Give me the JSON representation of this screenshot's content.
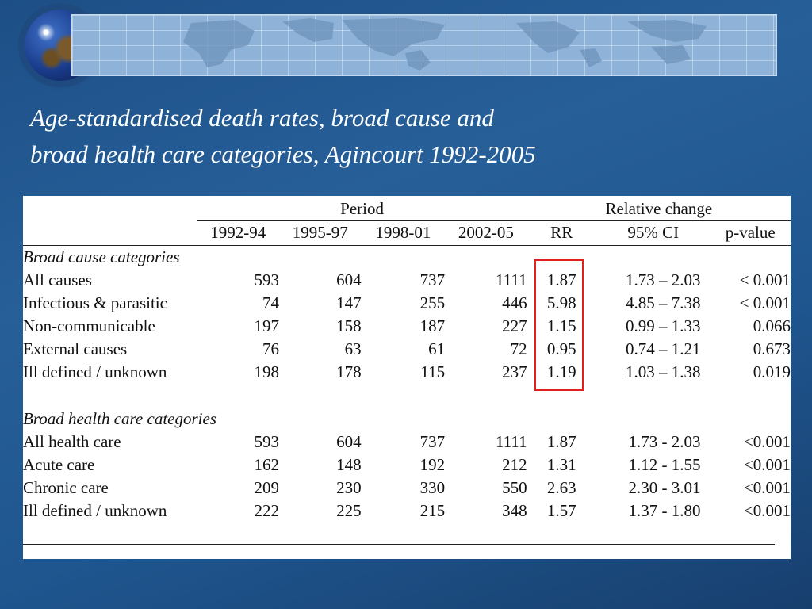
{
  "slide": {
    "title_line1": "Age-standardised death rates, broad cause and",
    "title_line2": "broad health care categories, Agincourt 1992-2005"
  },
  "table": {
    "group_headers": {
      "period": "Period",
      "relative_change": "Relative change"
    },
    "columns": [
      "1992-94",
      "1995-97",
      "1998-01",
      "2002-05",
      "RR",
      "95% CI",
      "p-value"
    ],
    "sections": [
      {
        "title": "Broad cause categories",
        "rows": [
          {
            "label": "All causes",
            "p1": "593",
            "p2": "604",
            "p3": "737",
            "p4": "1111",
            "rr": "1.87",
            "ci": "1.73 – 2.03",
            "p": "< 0.001"
          },
          {
            "label": "Infectious & parasitic",
            "p1": "74",
            "p2": "147",
            "p3": "255",
            "p4": "446",
            "rr": "5.98",
            "ci": "4.85 – 7.38",
            "p": "< 0.001"
          },
          {
            "label": "Non-communicable",
            "p1": "197",
            "p2": "158",
            "p3": "187",
            "p4": "227",
            "rr": "1.15",
            "ci": "0.99 – 1.33",
            "p": "0.066"
          },
          {
            "label": "External causes",
            "p1": "76",
            "p2": "63",
            "p3": "61",
            "p4": "72",
            "rr": "0.95",
            "ci": "0.74 – 1.21",
            "p": "0.673"
          },
          {
            "label": "Ill defined / unknown",
            "p1": "198",
            "p2": "178",
            "p3": "115",
            "p4": "237",
            "rr": "1.19",
            "ci": "1.03 – 1.38",
            "p": "0.019"
          }
        ]
      },
      {
        "title": "Broad health care categories",
        "rows": [
          {
            "label": "All health care",
            "p1": "593",
            "p2": "604",
            "p3": "737",
            "p4": "1111",
            "rr": "1.87",
            "ci": "1.73 - 2.03",
            "p": "<0.001"
          },
          {
            "label": "Acute care",
            "p1": "162",
            "p2": "148",
            "p3": "192",
            "p4": "212",
            "rr": "1.31",
            "ci": "1.12 - 1.55",
            "p": "<0.001"
          },
          {
            "label": "Chronic care",
            "p1": "209",
            "p2": "230",
            "p3": "330",
            "p4": "550",
            "rr": "2.63",
            "ci": "2.30 - 3.01",
            "p": "<0.001"
          },
          {
            "label": "Ill defined / unknown",
            "p1": "222",
            "p2": "225",
            "p3": "215",
            "p4": "348",
            "rr": "1.57",
            "ci": "1.37 - 1.80",
            "p": "<0.001"
          }
        ]
      }
    ]
  },
  "colors": {
    "highlight_box": "#e02020",
    "background": "#1f568f",
    "title_text": "#ffffff"
  }
}
